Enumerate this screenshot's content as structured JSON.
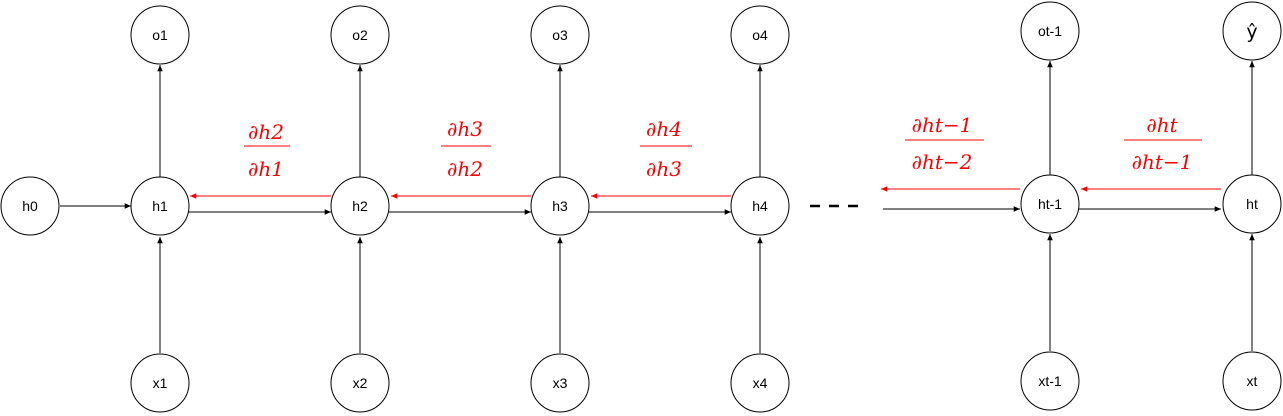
{
  "nodes": {
    "h0": "h0",
    "h1": "h1",
    "h2": "h2",
    "h3": "h3",
    "h4": "h4",
    "ht_1": "ht-1",
    "ht": "ht",
    "x1": "x1",
    "x2": "x2",
    "x3": "x3",
    "x4": "x4",
    "xt_1": "xt-1",
    "xt": "xt",
    "o1": "o1",
    "o2": "o2",
    "o3": "o3",
    "o4": "o4",
    "ot_1": "ot-1",
    "yhat": "ŷ"
  },
  "gradients": {
    "g21": {
      "num_h": "∂h",
      "num_sub": "2",
      "den_h": "∂h",
      "den_sub": "1"
    },
    "g32": {
      "num_h": "∂h",
      "num_sub": "3",
      "den_h": "∂h",
      "den_sub": "2"
    },
    "g43": {
      "num_h": "∂h",
      "num_sub": "4",
      "den_h": "∂h",
      "den_sub": "3"
    },
    "gt1t2": {
      "num_h": "∂h",
      "num_sub": "t−1",
      "den_h": "∂h",
      "den_sub": "t−2"
    },
    "gtt1": {
      "num_h": "∂h",
      "num_sub": "t",
      "den_h": "∂h",
      "den_sub": "t−1"
    }
  },
  "colors": {
    "gradient": "#ff0000",
    "edge": "#000000"
  }
}
